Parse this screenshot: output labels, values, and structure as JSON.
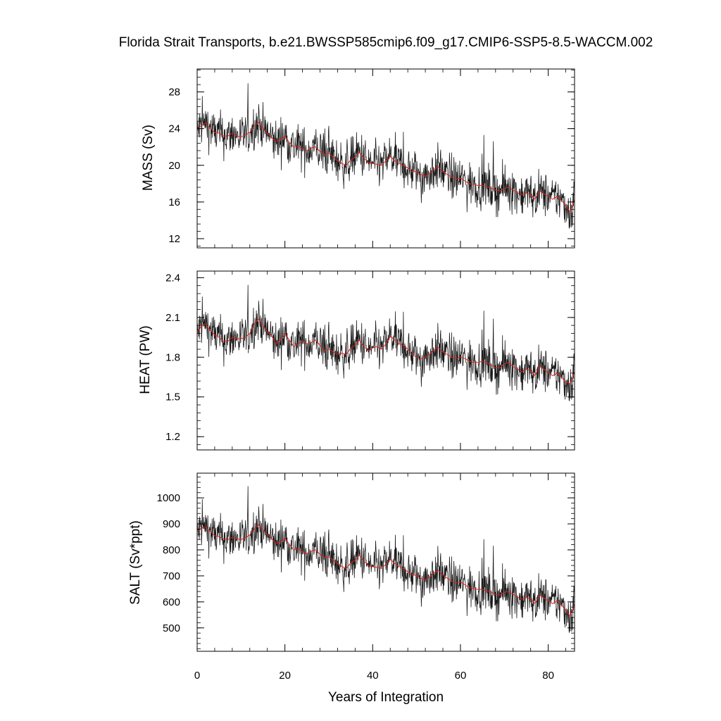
{
  "chart_data": {
    "type": "line",
    "title": "Florida Strait Transports, b.e21.BWSSP585cmip6.f09_g17.CMIP6-SSP5-8.5-WACCM.002",
    "xlabel": "Years of Integration",
    "x_ticks": [
      0,
      20,
      40,
      60,
      80
    ],
    "xlim": [
      0,
      86
    ],
    "grid": false,
    "series_colors": {
      "monthly": "#1a1a1a",
      "smoothed": "#e0201b"
    },
    "panels": [
      {
        "ylabel": "MASS (Sv)",
        "ylim": [
          11,
          30.5
        ],
        "y_ticks": [
          "28",
          "24",
          "20",
          "16",
          "12"
        ],
        "y_minor_step": 0.8,
        "series": [
          {
            "x": [
              0,
              1,
              2,
              3,
              4,
              5,
              6,
              7,
              8,
              9,
              10,
              11,
              12,
              13,
              14,
              15,
              16,
              17,
              18,
              19,
              20,
              21,
              22,
              23,
              24,
              25,
              26,
              27,
              28,
              29,
              30,
              31,
              32,
              33,
              34,
              35,
              36,
              37,
              38,
              39,
              40,
              41,
              42,
              43,
              44,
              45,
              46,
              47,
              48,
              49,
              50,
              51,
              52,
              53,
              54,
              55,
              56,
              57,
              58,
              59,
              60,
              61,
              62,
              63,
              64,
              65,
              66,
              67,
              68,
              69,
              70,
              71,
              72,
              73,
              74,
              75,
              76,
              77,
              78,
              79,
              80,
              81,
              82,
              83,
              84,
              85,
              86
            ],
            "values": [
              23.8,
              24.4,
              24.6,
              24.0,
              23.6,
              23.5,
              23.2,
              23.2,
              23.5,
              23.2,
              23.1,
              23.3,
              23.6,
              24.3,
              24.7,
              24.0,
              23.5,
              23.0,
              22.6,
              22.8,
              23.2,
              22.5,
              22.0,
              22.1,
              21.8,
              21.6,
              21.9,
              22.0,
              21.5,
              21.2,
              21.3,
              20.9,
              20.5,
              20.2,
              20.0,
              20.6,
              20.9,
              21.4,
              20.8,
              20.3,
              20.2,
              20.1,
              20.0,
              20.5,
              21.0,
              20.5,
              20.2,
              20.0,
              19.7,
              19.3,
              19.3,
              19.0,
              18.8,
              19.1,
              19.6,
              19.8,
              19.3,
              19.0,
              18.7,
              18.5,
              18.6,
              18.3,
              18.0,
              17.9,
              17.8,
              17.8,
              17.7,
              17.5,
              17.3,
              17.2,
              17.5,
              17.6,
              17.3,
              17.0,
              16.8,
              17.0,
              16.8,
              16.3,
              17.2,
              16.9,
              16.6,
              16.3,
              16.6,
              16.2,
              15.6,
              14.9,
              16.3
            ]
          }
        ]
      },
      {
        "ylabel": "HEAT (PW)",
        "ylim": [
          1.1,
          2.45
        ],
        "y_ticks": [
          "2.4",
          "2.1",
          "1.8",
          "1.5",
          "1.2"
        ],
        "y_minor_step": 0.06,
        "series": [
          {
            "x": [
              0,
              1,
              2,
              3,
              4,
              5,
              6,
              7,
              8,
              9,
              10,
              11,
              12,
              13,
              14,
              15,
              16,
              17,
              18,
              19,
              20,
              21,
              22,
              23,
              24,
              25,
              26,
              27,
              28,
              29,
              30,
              31,
              32,
              33,
              34,
              35,
              36,
              37,
              38,
              39,
              40,
              41,
              42,
              43,
              44,
              45,
              46,
              47,
              48,
              49,
              50,
              51,
              52,
              53,
              54,
              55,
              56,
              57,
              58,
              59,
              60,
              61,
              62,
              63,
              64,
              65,
              66,
              67,
              68,
              69,
              70,
              71,
              72,
              73,
              74,
              75,
              76,
              77,
              78,
              79,
              80,
              81,
              82,
              83,
              84,
              85,
              86
            ],
            "values": [
              1.98,
              2.04,
              2.05,
              2.0,
              1.97,
              1.95,
              1.92,
              1.92,
              1.95,
              1.94,
              1.94,
              1.95,
              1.98,
              2.05,
              2.09,
              2.04,
              1.99,
              1.96,
              1.9,
              1.93,
              1.98,
              1.93,
              1.88,
              1.9,
              1.92,
              1.9,
              1.91,
              1.93,
              1.89,
              1.85,
              1.86,
              1.84,
              1.82,
              1.83,
              1.82,
              1.87,
              1.89,
              1.93,
              1.88,
              1.85,
              1.87,
              1.88,
              1.86,
              1.9,
              1.96,
              1.93,
              1.9,
              1.89,
              1.86,
              1.82,
              1.8,
              1.79,
              1.8,
              1.82,
              1.86,
              1.87,
              1.84,
              1.82,
              1.8,
              1.79,
              1.8,
              1.79,
              1.77,
              1.76,
              1.76,
              1.77,
              1.76,
              1.74,
              1.72,
              1.72,
              1.75,
              1.76,
              1.73,
              1.71,
              1.69,
              1.71,
              1.7,
              1.66,
              1.73,
              1.71,
              1.68,
              1.66,
              1.68,
              1.65,
              1.61,
              1.6,
              1.69
            ]
          }
        ]
      },
      {
        "ylabel": "SALT (Sv*ppt)",
        "ylim": [
          410,
          1095
        ],
        "y_ticks": [
          "1000",
          "900",
          "800",
          "700",
          "600",
          "500"
        ],
        "y_minor_step": 20,
        "series": [
          {
            "x": [
              0,
              1,
              2,
              3,
              4,
              5,
              6,
              7,
              8,
              9,
              10,
              11,
              12,
              13,
              14,
              15,
              16,
              17,
              18,
              19,
              20,
              21,
              22,
              23,
              24,
              25,
              26,
              27,
              28,
              29,
              30,
              31,
              32,
              33,
              34,
              35,
              36,
              37,
              38,
              39,
              40,
              41,
              42,
              43,
              44,
              45,
              46,
              47,
              48,
              49,
              50,
              51,
              52,
              53,
              54,
              55,
              56,
              57,
              58,
              59,
              60,
              61,
              62,
              63,
              64,
              65,
              66,
              67,
              68,
              69,
              70,
              71,
              72,
              73,
              74,
              75,
              76,
              77,
              78,
              79,
              80,
              81,
              82,
              83,
              84,
              85,
              86
            ],
            "values": [
              868,
              885,
              888,
              870,
              855,
              850,
              843,
              840,
              848,
              842,
              840,
              846,
              858,
              880,
              898,
              875,
              860,
              842,
              825,
              830,
              845,
              822,
              800,
              803,
              793,
              786,
              795,
              800,
              783,
              771,
              773,
              760,
              746,
              736,
              728,
              750,
              760,
              780,
              758,
              740,
              735,
              733,
              728,
              745,
              765,
              748,
              736,
              728,
              716,
              703,
              702,
              691,
              684,
              695,
              713,
              720,
              703,
              691,
              680,
              673,
              676,
              666,
              655,
              651,
              648,
              648,
              644,
              637,
              629,
              626,
              637,
              640,
              629,
              618,
              611,
              618,
              611,
              593,
              626,
              615,
              604,
              593,
              604,
              589,
              567,
              545,
              593
            ]
          }
        ]
      }
    ]
  }
}
